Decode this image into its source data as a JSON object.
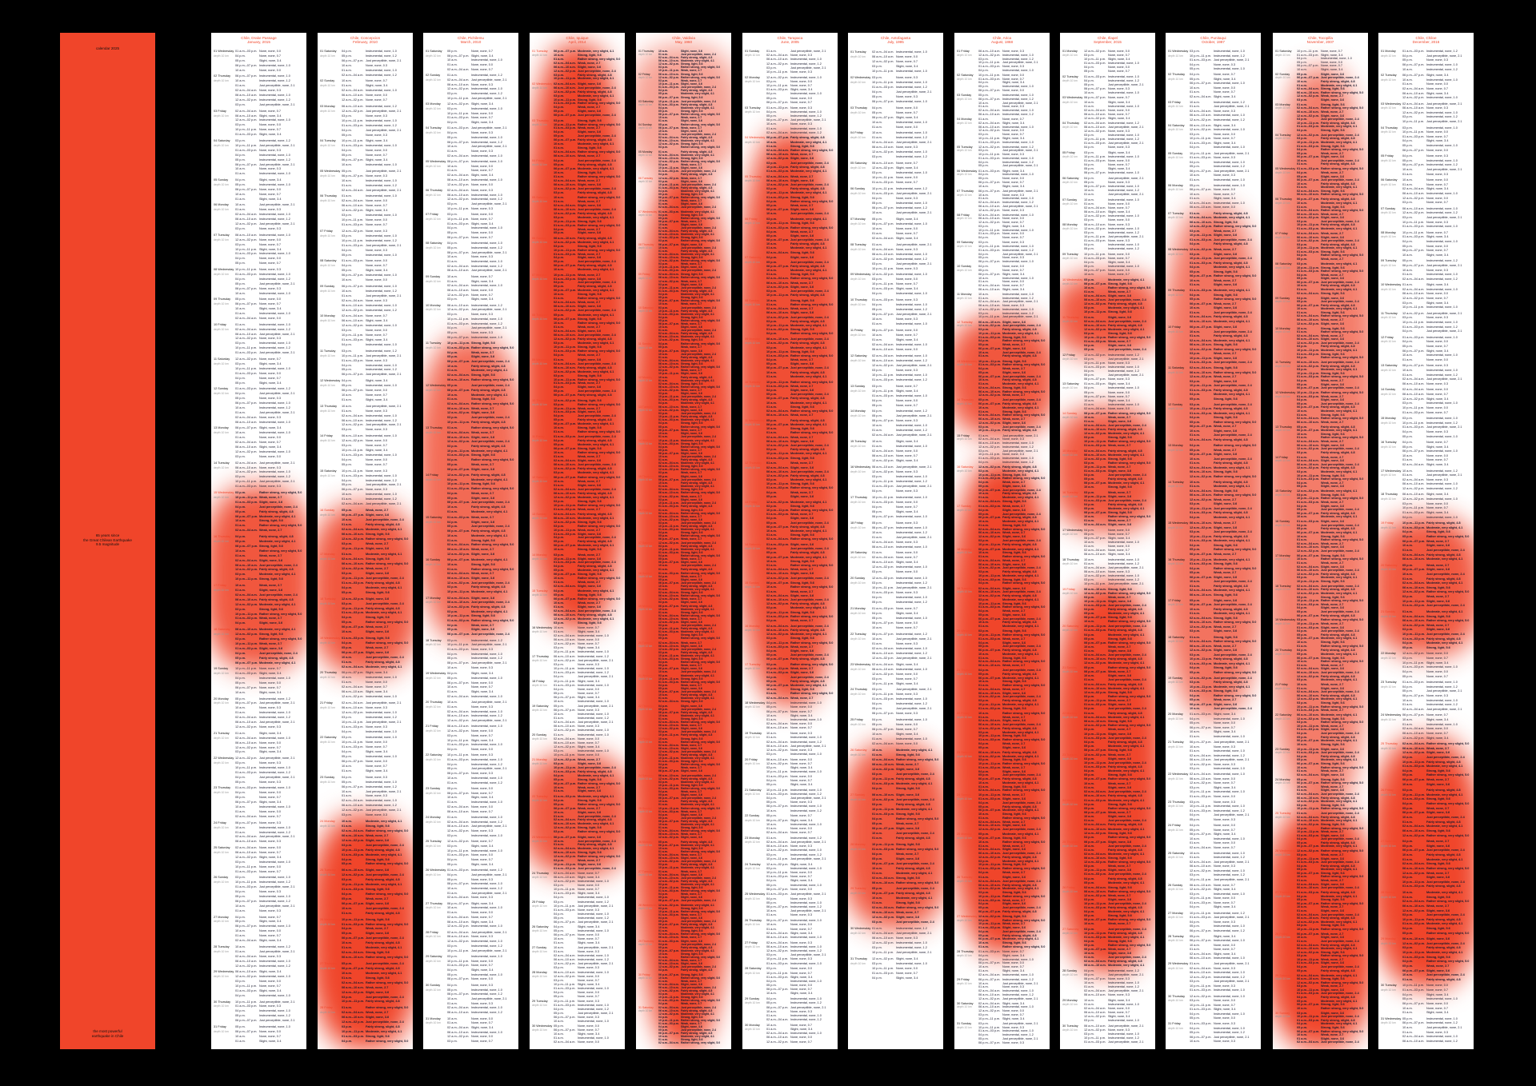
{
  "cover": {
    "title": "calendar 2025",
    "middle": [
      "65 years since",
      "the Great Chilean Earthquake",
      "9.5 magnitude"
    ],
    "bottom": [
      "the most powerful",
      "earthquake in Chile"
    ]
  },
  "colors": {
    "accent": "#f0452a",
    "background": "#000000",
    "text": "#1a1a2e"
  },
  "weekdays": [
    "Sunday",
    "Monday",
    "Tuesday",
    "Wednesday",
    "Thursday",
    "Friday",
    "Saturday"
  ],
  "depth_label": "depth 10 km",
  "entry_pool": {
    "times": [
      "01 a.m.–03 p.m.",
      "04 p.m.",
      "05 p.m.",
      "06 p.m.–07 p.m.",
      "10 a.m.",
      "01 a.m.",
      "02 a.m.–04 a.m.",
      "06 a.m.–10 a.m.",
      "12 a.m.–02 p.m.",
      "03 p.m.",
      "10 p.m.–11 p.m."
    ],
    "calm": [
      "None, none, 0.0",
      "Instrumental, none, 1.0",
      "None, none, 0.7",
      "Instrumental, none, 1.2",
      "Slight, none, 3.4",
      "Just perceptible, none, 2.1",
      "Instrumental, none, 1.0",
      "None, none, 0.3"
    ],
    "strong": [
      "Rather strong, very slight, 5.0",
      "Fairly strong, slight, 4.8",
      "Weak, none, 2.7",
      "Moderate, very slight, 4.1",
      "Slight, none, 3.6",
      "Strong, light, 5.6",
      "Just perceptible, none, 2.4"
    ]
  },
  "months": [
    {
      "title": "Chile, Drake Passage",
      "subtitle": "January, 2015",
      "first_weekday": 3,
      "events_per_day": [
        5,
        7,
        6,
        8,
        5,
        6,
        7,
        6,
        5,
        7,
        6,
        8,
        7,
        6,
        9,
        10,
        9,
        8,
        6,
        7,
        5,
        6,
        7,
        5,
        6,
        8,
        6,
        5,
        6,
        5,
        4
      ],
      "highlights": [
        [
          15,
          18,
          0.9
        ]
      ]
    },
    {
      "title": "Chile, Concepcion",
      "subtitle": "February, 2010",
      "first_weekday": 6,
      "events_per_day": [
        6,
        5,
        7,
        6,
        5,
        7,
        6,
        5,
        6,
        7,
        6,
        5,
        6,
        7,
        8,
        9,
        9,
        8,
        7,
        6,
        7,
        8,
        9,
        10,
        10,
        9,
        9,
        8
      ],
      "highlights": [
        [
          16,
          19,
          0.9
        ],
        [
          24,
          28,
          1.0
        ]
      ]
    },
    {
      "title": "Chile, Pichilemu",
      "subtitle": "March, 2010",
      "first_weekday": 6,
      "events_per_day": [
        5,
        6,
        5,
        7,
        6,
        5,
        6,
        7,
        6,
        8,
        9,
        9,
        10,
        9,
        9,
        8,
        9,
        7,
        6,
        5,
        6,
        7,
        6,
        5,
        6,
        7,
        6,
        5,
        6,
        7,
        6
      ],
      "highlights": [
        [
          11,
          17,
          0.8
        ]
      ]
    },
    {
      "title": "Chile, Iquique",
      "subtitle": "April, 2014",
      "first_weekday": 2,
      "events_per_day": [
        8,
        9,
        10,
        9,
        10,
        9,
        10,
        11,
        10,
        9,
        10,
        9,
        10,
        9,
        9,
        7,
        6,
        6,
        7,
        6,
        9,
        10,
        9,
        7,
        6,
        5,
        6,
        7,
        6,
        5
      ],
      "highlights": [
        [
          1,
          15,
          1.0
        ],
        [
          21,
          23,
          0.9
        ]
      ]
    },
    {
      "title": "Chile, Valdivia",
      "subtitle": "May, 1960",
      "first_weekday": 4,
      "events_per_day": [
        7,
        8,
        7,
        8,
        8,
        10,
        10,
        9,
        10,
        11,
        10,
        9,
        10,
        11,
        10,
        10,
        9,
        10,
        11,
        10,
        9,
        10,
        11,
        10,
        10,
        9,
        10,
        11,
        10,
        10,
        12
      ],
      "highlights": [
        [
          1,
          5,
          0.5
        ],
        [
          6,
          31,
          1.0
        ]
      ]
    },
    {
      "title": "Chile, Tarapaca",
      "subtitle": "June, 2005",
      "first_weekday": 0,
      "events_per_day": [
        6,
        7,
        7,
        9,
        10,
        9,
        10,
        9,
        10,
        9,
        10,
        9,
        10,
        9,
        10,
        9,
        9,
        7,
        6,
        7,
        6,
        5,
        6,
        7,
        6,
        5,
        6,
        7,
        6,
        5
      ],
      "highlights": [
        [
          4,
          17,
          0.95
        ]
      ]
    },
    {
      "title": "Chile, Antofagasta",
      "subtitle": "July, 1995",
      "first_weekday": 2,
      "events_per_day": [
        5,
        6,
        5,
        6,
        5,
        6,
        5,
        6,
        5,
        6,
        5,
        6,
        5,
        6,
        5,
        6,
        5,
        6,
        5,
        6,
        5,
        6,
        5,
        6,
        6,
        9,
        10,
        9,
        8,
        6,
        5
      ],
      "highlights": [
        [
          26,
          29,
          0.9
        ]
      ]
    },
    {
      "title": "Chile, Arica",
      "subtitle": "August, 1868",
      "first_weekday": 5,
      "events_per_day": [
        6,
        5,
        6,
        7,
        6,
        5,
        6,
        7,
        6,
        7,
        7,
        10,
        10,
        9,
        8,
        10,
        11,
        10,
        11,
        10,
        11,
        10,
        11,
        10,
        11,
        10,
        9,
        7,
        6,
        5,
        6
      ],
      "highlights": [
        [
          12,
          14,
          0.9
        ],
        [
          16,
          27,
          1.0
        ]
      ]
    },
    {
      "title": "Chile, Illapel",
      "subtitle": "September, 2015",
      "first_weekday": 1,
      "events_per_day": [
        6,
        5,
        6,
        7,
        6,
        5,
        6,
        7,
        6,
        9,
        9,
        7,
        7,
        9,
        10,
        9,
        7,
        7,
        9,
        10,
        11,
        10,
        11,
        10,
        11,
        10,
        10,
        7,
        6,
        5
      ],
      "highlights": [
        [
          10,
          11,
          0.9
        ],
        [
          14,
          16,
          0.9
        ],
        [
          19,
          27,
          1.0
        ]
      ]
    },
    {
      "title": "Chile, Punitaqui",
      "subtitle": "October, 1997",
      "first_weekday": 3,
      "events_per_day": [
        5,
        6,
        5,
        6,
        7,
        6,
        8,
        9,
        8,
        9,
        8,
        9,
        8,
        9,
        8,
        9,
        8,
        9,
        8,
        6,
        7,
        6,
        5,
        6,
        7,
        6,
        5,
        6,
        7,
        6,
        5
      ],
      "highlights": [
        [
          7,
          19,
          0.75
        ]
      ]
    },
    {
      "title": "Chile, Tocopilla",
      "subtitle": "November, 2007",
      "first_weekday": 6,
      "events_per_day": [
        6,
        8,
        8,
        9,
        8,
        9,
        8,
        9,
        8,
        9,
        8,
        9,
        8,
        9,
        8,
        9,
        8,
        9,
        8,
        9,
        8,
        9,
        8,
        9,
        10,
        11,
        11,
        11,
        10,
        9
      ],
      "highlights": [
        [
          2,
          24,
          0.7
        ],
        [
          25,
          30,
          1.0
        ]
      ]
    },
    {
      "title": "Chile, Chiloe",
      "subtitle": "December, 2016",
      "first_weekday": 1,
      "events_per_day": [
        5,
        6,
        5,
        6,
        5,
        6,
        5,
        6,
        5,
        6,
        5,
        6,
        5,
        6,
        5,
        6,
        5,
        6,
        9,
        10,
        9,
        6,
        7,
        6,
        10,
        11,
        11,
        10,
        10,
        7,
        6
      ],
      "highlights": [
        [
          19,
          21,
          0.9
        ],
        [
          25,
          29,
          1.0
        ]
      ]
    }
  ]
}
